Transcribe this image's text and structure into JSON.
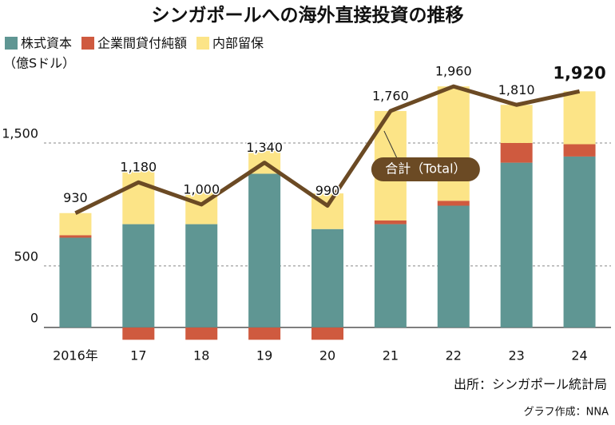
{
  "chart_data": {
    "type": "stacked-bar-line",
    "title": "シンガポールへの海外直接投資の推移",
    "unit": "（億Sドル）",
    "categories": [
      "2016年",
      "17",
      "18",
      "19",
      "20",
      "21",
      "22",
      "23",
      "24"
    ],
    "series": [
      {
        "name": "株式資本",
        "color": "#5f9693",
        "values": [
          730,
          840,
          840,
          1250,
          800,
          840,
          990,
          1340,
          1390
        ]
      },
      {
        "name": "企業間貸付純額",
        "color": "#cf5a3f",
        "values": [
          20,
          -100,
          -100,
          -100,
          -100,
          30,
          40,
          160,
          100
        ]
      },
      {
        "name": "内部留保",
        "color": "#fce487",
        "values": [
          180,
          440,
          260,
          190,
          290,
          890,
          930,
          310,
          430
        ]
      }
    ],
    "total": {
      "name": "合計（Total）",
      "color": "#6b4a24",
      "values": [
        930,
        1180,
        1000,
        1340,
        990,
        1760,
        1960,
        1810,
        1920
      ],
      "value_labels": [
        "930",
        "1,180",
        "1,000",
        "1,340",
        "990",
        "1,760",
        "1,960",
        "1,810",
        "1,920"
      ]
    },
    "ylim": [
      -150,
      2000
    ],
    "yticks": [
      0,
      500,
      {
        "value": 1500,
        "label": "1,500"
      }
    ],
    "grid": true,
    "source": "出所：シンガポール統計局",
    "credit": "グラフ作成：NNA"
  }
}
